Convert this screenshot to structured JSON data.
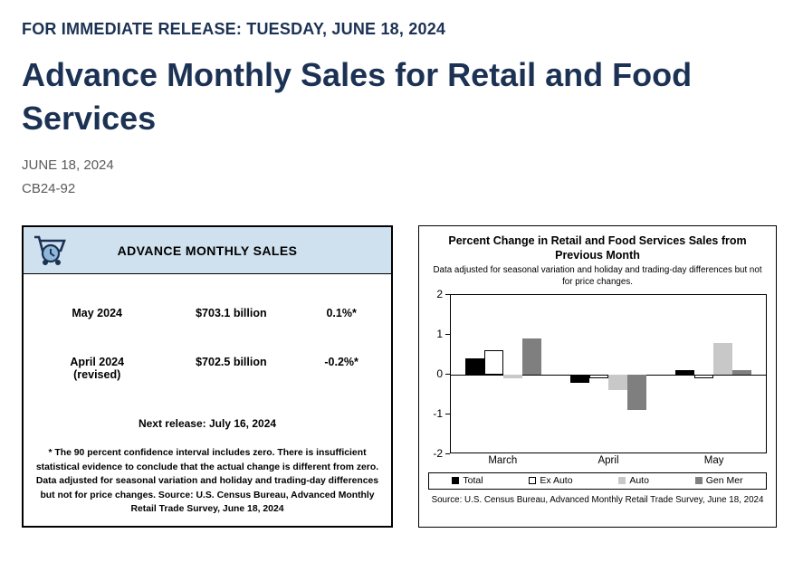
{
  "page": {
    "release_line": "FOR IMMEDIATE RELEASE: TUESDAY, JUNE 18, 2024",
    "title": "Advance Monthly Sales for Retail and Food Services",
    "date": "JUNE 18, 2024",
    "release_number": "CB24-92"
  },
  "sales_card": {
    "header": "ADVANCE MONTHLY SALES",
    "rows": [
      {
        "period": "May 2024",
        "period_note": "",
        "value": "$703.1 billion",
        "change": "0.1%*"
      },
      {
        "period": "April 2024",
        "period_note": "(revised)",
        "value": "$702.5 billion",
        "change": "-0.2%*"
      }
    ],
    "next_release": "Next release: July 16, 2024",
    "footnote": "* The 90 percent confidence interval includes zero. There is insufficient statistical evidence to conclude that the actual change is different from zero. Data adjusted for seasonal variation and holiday and trading-day differences but not for price changes. Source: U.S. Census Bureau, Advanced Monthly Retail Trade Survey, June 18, 2024"
  },
  "chart_card": {
    "title": "Percent Change in Retail and Food Services Sales from Previous Month",
    "subtitle": "Data adjusted for seasonal variation and holiday and trading-day differences but not for price changes.",
    "source": "Source: U.S. Census Bureau, Advanced Monthly Retail Trade Survey, June 18, 2024"
  },
  "chart_data": {
    "type": "bar",
    "title": "Percent Change in Retail and Food Services Sales from Previous Month",
    "categories": [
      "March",
      "April",
      "May"
    ],
    "series": [
      {
        "name": "Total",
        "color": "#000000",
        "values": [
          0.4,
          -0.2,
          0.1
        ]
      },
      {
        "name": "Ex Auto",
        "color": "#ffffff",
        "values": [
          0.6,
          -0.1,
          -0.1
        ]
      },
      {
        "name": "Auto",
        "color": "#c8c8c8",
        "values": [
          -0.1,
          -0.4,
          0.8
        ]
      },
      {
        "name": "Gen Mer",
        "color": "#7f7f7f",
        "values": [
          0.9,
          -0.9,
          0.1
        ]
      }
    ],
    "ylim": [
      -2,
      2
    ],
    "yticks": [
      2,
      1,
      0,
      -1,
      -2
    ],
    "grid": false,
    "legend_position": "bottom"
  }
}
